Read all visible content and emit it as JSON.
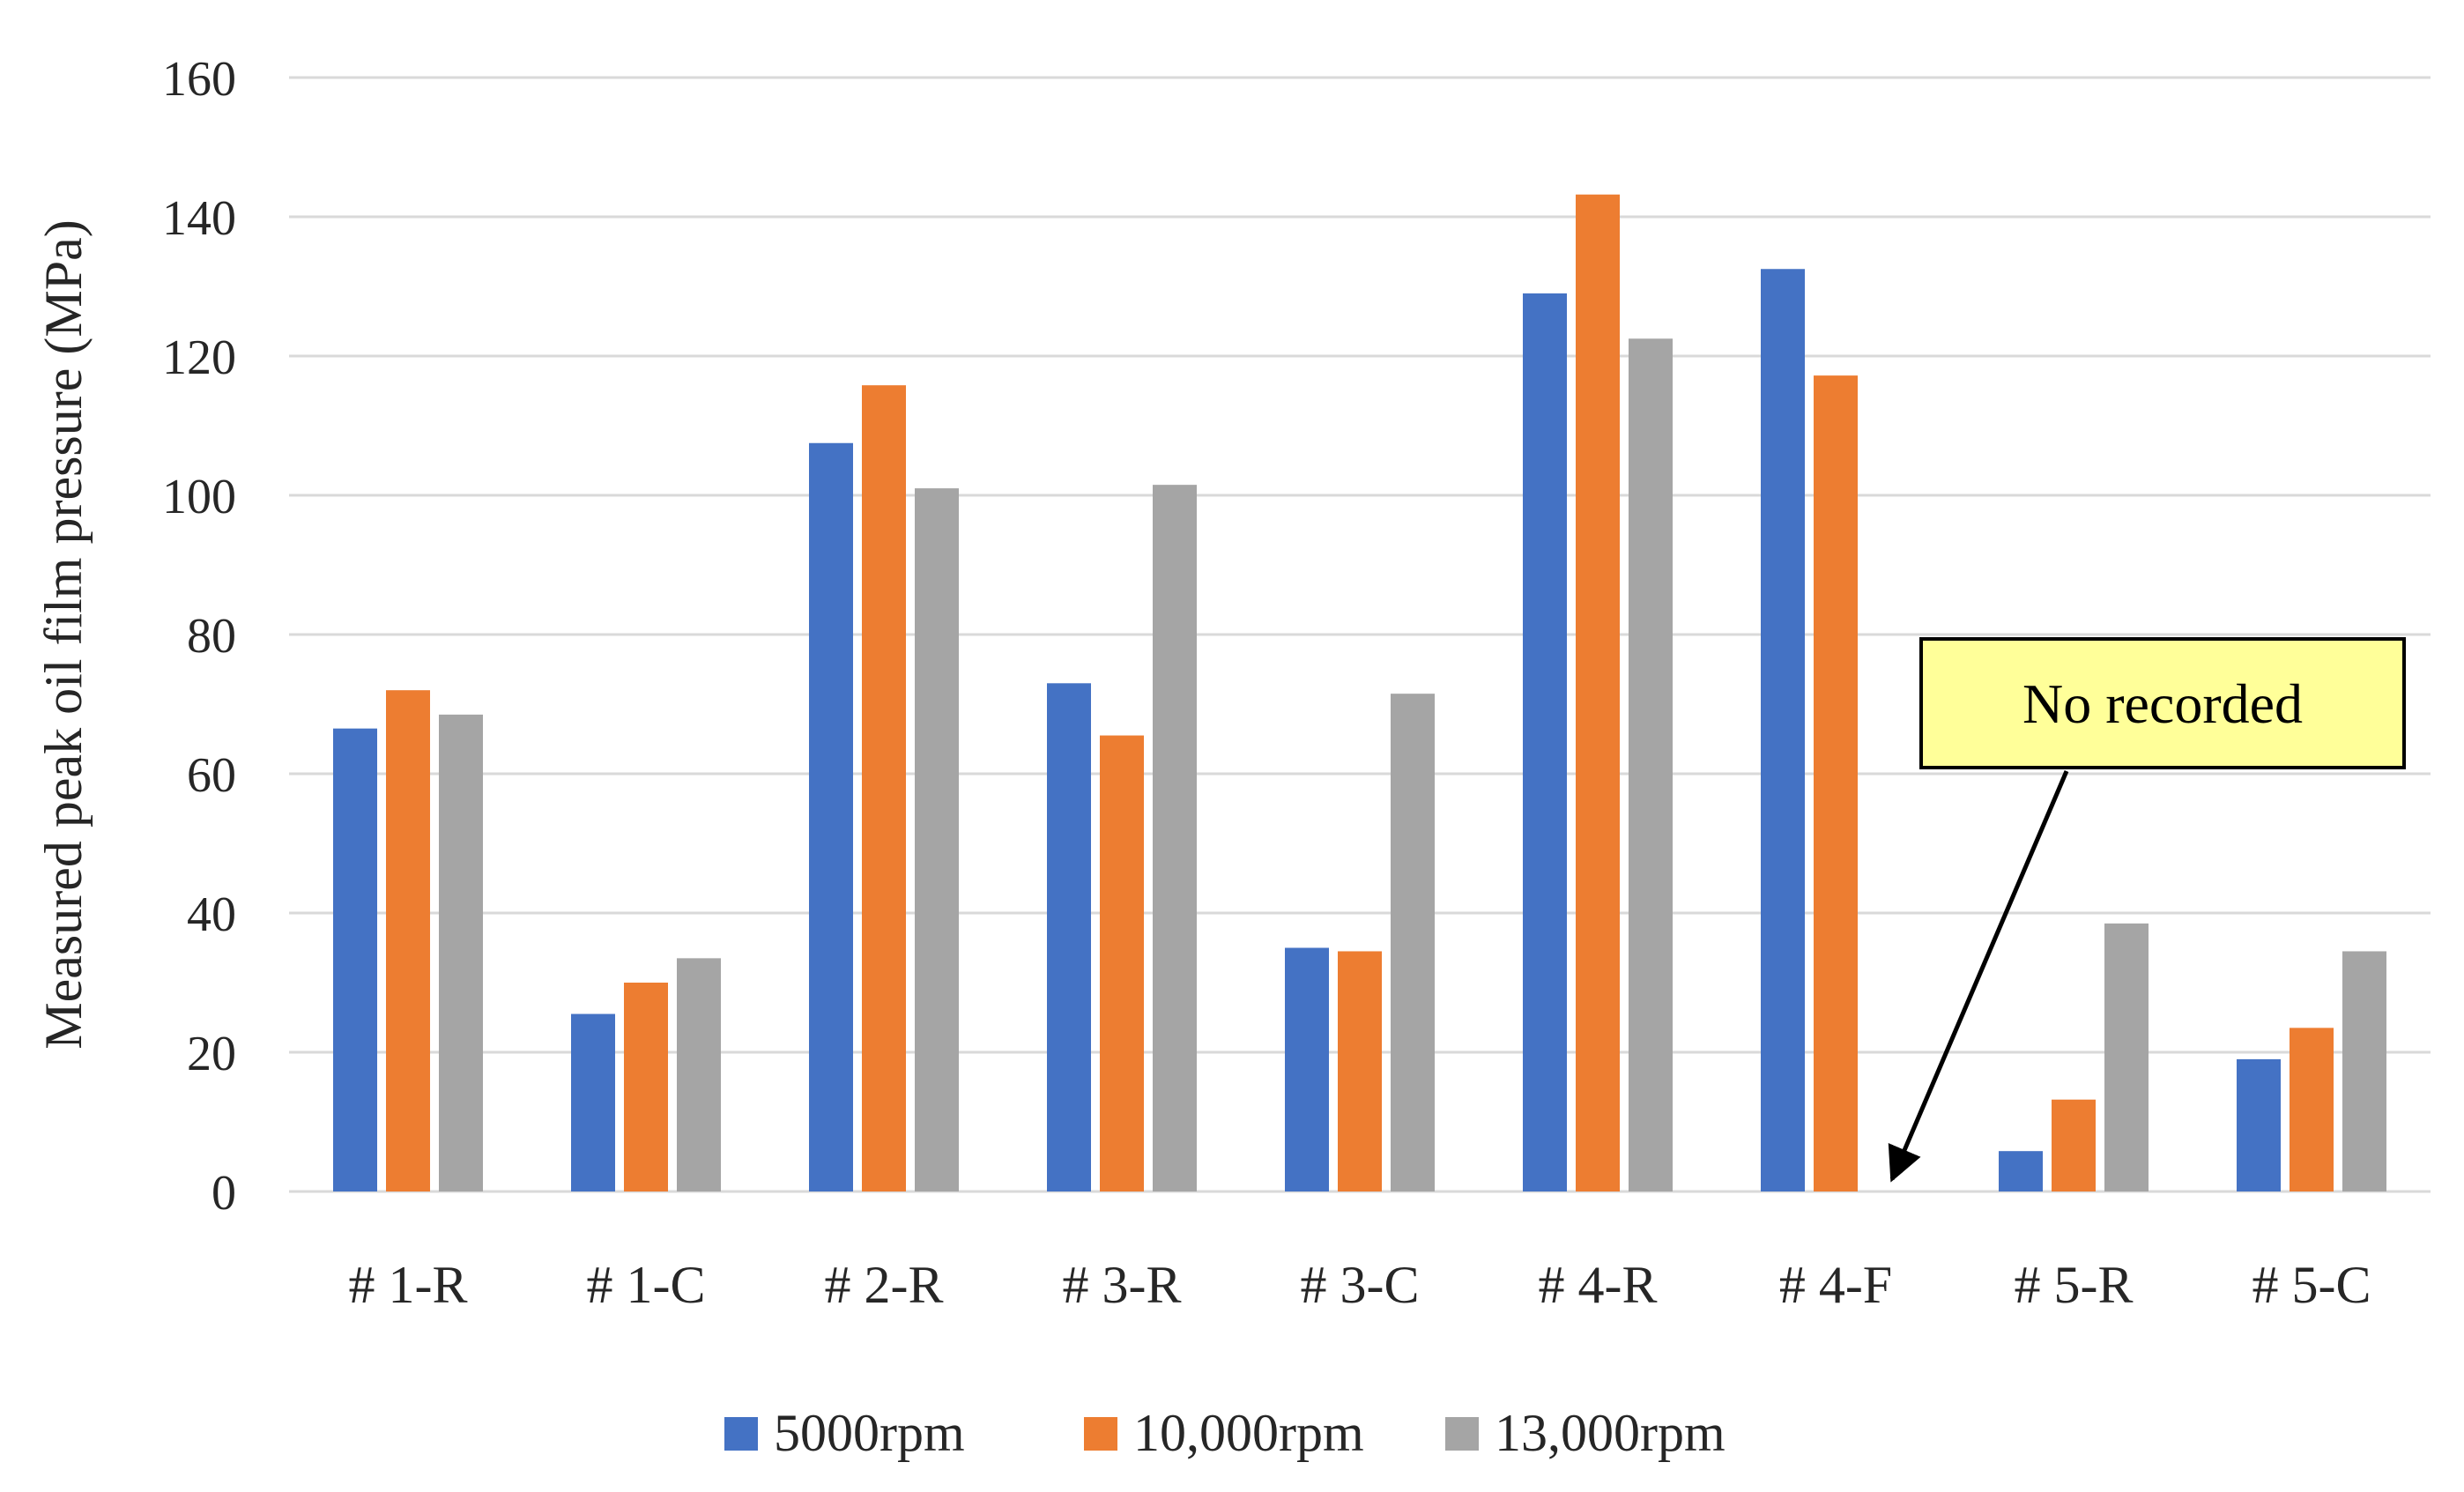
{
  "chart_data": {
    "type": "bar",
    "title": "",
    "xlabel": "",
    "ylabel": "Measured peak oil film pressure (MPa)",
    "ylim": [
      0,
      160
    ],
    "yticks": [
      0,
      20,
      40,
      60,
      80,
      100,
      120,
      140,
      160
    ],
    "grid": true,
    "legend_position": "bottom",
    "categories": [
      "# 1-R",
      "# 1-C",
      "# 2-R",
      "# 3-R",
      "# 3-C",
      "# 4-R",
      "# 4-F",
      "# 5-R",
      "# 5-C"
    ],
    "series": [
      {
        "name": "5000rpm",
        "color": "#4472C4",
        "values": [
          66.5,
          25.5,
          107.5,
          73,
          35,
          129,
          132.5,
          5.8,
          19
        ]
      },
      {
        "name": "10,000rpm",
        "color": "#ED7D31",
        "values": [
          72,
          30,
          115.8,
          65.5,
          34.5,
          143.2,
          117.2,
          13.2,
          23.5
        ]
      },
      {
        "name": "13,000rpm",
        "color": "#A5A5A5",
        "values": [
          68.5,
          33.5,
          101,
          101.5,
          71.5,
          122.5,
          null,
          38.5,
          34.5
        ]
      }
    ],
    "annotations": [
      {
        "text": "No recorded",
        "category": "# 4-F",
        "series": "13,000rpm",
        "box_color": "#FFFF99"
      }
    ]
  }
}
